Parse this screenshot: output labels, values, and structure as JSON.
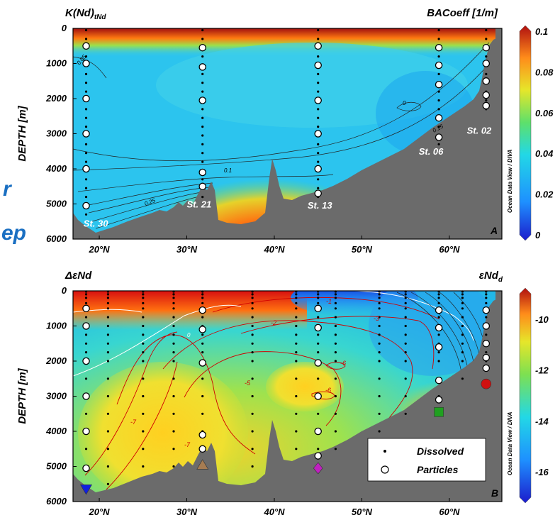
{
  "colors": {
    "land": "#6b6b6b",
    "contour": "#222222",
    "contour_red": "#d00000",
    "contour_white": "#ffffff",
    "side_text": "#1a6fc2"
  },
  "side_text": {
    "top": "r",
    "bottom": "ep"
  },
  "chart_data": [
    {
      "type": "heatmap",
      "panel": "A",
      "title_left": "K(Nd)tNd",
      "title_right": "BACoeff [1/m]",
      "ylabel": "DEPTH [m]",
      "xlabel": "",
      "x_ticks": [
        "20°N",
        "30°N",
        "40°N",
        "50°N",
        "60°N"
      ],
      "x_tick_values": [
        20,
        30,
        40,
        50,
        60
      ],
      "y_ticks": [
        "0",
        "1000",
        "2000",
        "3000",
        "4000",
        "5000",
        "6000"
      ],
      "y_tick_values": [
        0,
        1000,
        2000,
        3000,
        4000,
        5000,
        6000
      ],
      "xlim": [
        17,
        66
      ],
      "ylim": [
        6000,
        0
      ],
      "colorbar": {
        "ticks": [
          "0.1",
          "0.08",
          "0.06",
          "0.04",
          "0.02",
          "0"
        ],
        "values": [
          0.1,
          0.08,
          0.06,
          0.04,
          0.02,
          0
        ],
        "range": [
          0,
          0.1
        ]
      },
      "contour_labels": [
        "0.05",
        "0",
        "0.1",
        "0.15",
        "0.25",
        "0"
      ],
      "stations": [
        {
          "name": "St. 30",
          "lat": 18.5,
          "particle_depths": [
            500,
            1000,
            2000,
            3000,
            4000,
            5050
          ]
        },
        {
          "name": "St. 21",
          "lat": 31.8,
          "particle_depths": [
            550,
            1100,
            2050,
            4100,
            4500
          ]
        },
        {
          "name": "St. 13",
          "lat": 45,
          "particle_depths": [
            500,
            1050,
            2050,
            3000,
            4000,
            4700
          ]
        },
        {
          "name": "St. 06",
          "lat": 58.8,
          "particle_depths": [
            550,
            1050,
            1600,
            2550,
            3100
          ]
        },
        {
          "name": "St. 02",
          "lat": 64.2,
          "particle_depths": [
            550,
            1000,
            1500,
            1900,
            2200
          ]
        }
      ],
      "watermark": "Ocean Data View / DIVA"
    },
    {
      "type": "heatmap",
      "panel": "B",
      "title_left": "ΔεNd",
      "title_right": "εNdd",
      "ylabel": "DEPTH [m]",
      "xlabel": "",
      "x_ticks": [
        "20°N",
        "30°N",
        "40°N",
        "50°N",
        "60°N"
      ],
      "x_tick_values": [
        20,
        30,
        40,
        50,
        60
      ],
      "y_ticks": [
        "0",
        "1000",
        "2000",
        "3000",
        "4000",
        "5000",
        "6000"
      ],
      "y_tick_values": [
        0,
        1000,
        2000,
        3000,
        4000,
        5000,
        6000
      ],
      "xlim": [
        17,
        66
      ],
      "ylim": [
        6000,
        0
      ],
      "colorbar": {
        "ticks": [
          "-10",
          "-12",
          "-14",
          "-16"
        ],
        "values": [
          -10,
          -12,
          -14,
          -16
        ],
        "range": [
          -17,
          -9
        ]
      },
      "contour_labels": [
        "0",
        "-1",
        "-2",
        "-3",
        "-5",
        "-6",
        "-6",
        "-7",
        "-7"
      ],
      "legend": {
        "position": "bottom-right",
        "entries": [
          "Dissolved",
          "Particles"
        ]
      },
      "markers": [
        {
          "shape": "triangle-down",
          "color": "#1020e0",
          "lat": 18.5,
          "depth": 5650
        },
        {
          "shape": "triangle-up",
          "color": "#a67c52",
          "lat": 31.8,
          "depth": 4950
        },
        {
          "shape": "diamond",
          "color": "#c020c0",
          "lat": 45,
          "depth": 5050
        },
        {
          "shape": "square",
          "color": "#20a020",
          "lat": 58.8,
          "depth": 3450
        },
        {
          "shape": "circle",
          "color": "#d01010",
          "lat": 64.2,
          "depth": 2650
        }
      ],
      "dissolved_stations": [
        18.5,
        21,
        25,
        28.5,
        31.8,
        37.5,
        42.5,
        45,
        47,
        52,
        55,
        58.8,
        61.5,
        64.2
      ],
      "particle_stations": [
        {
          "lat": 18.5,
          "depths": [
            500,
            1000,
            2000,
            3000,
            4000,
            5050
          ]
        },
        {
          "lat": 31.8,
          "depths": [
            550,
            1100,
            2050,
            4100,
            4500
          ]
        },
        {
          "lat": 45,
          "depths": [
            500,
            1050,
            2050,
            3000,
            4000,
            4700
          ]
        },
        {
          "lat": 58.8,
          "depths": [
            550,
            1050,
            1600,
            2550,
            3100
          ]
        },
        {
          "lat": 64.2,
          "depths": [
            550,
            1000,
            1500,
            1900,
            2200
          ]
        }
      ],
      "watermark": "Ocean Data View / DIVA"
    }
  ]
}
